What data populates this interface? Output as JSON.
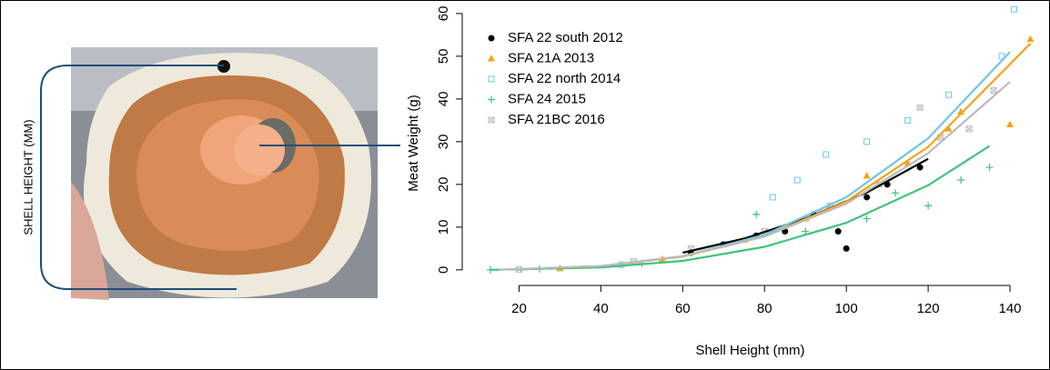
{
  "photo": {
    "label": "SHELL HEIGHT (MM)"
  },
  "chart_data": {
    "type": "scatter",
    "x_label": "Shell Height (mm)",
    "y_label": "Meat Weight (g)",
    "xlim": [
      7,
      146
    ],
    "ylim": [
      -2.8,
      62.1
    ],
    "xticks": [
      20,
      40,
      60,
      80,
      100,
      120,
      140
    ],
    "yticks": [
      0,
      10,
      20,
      30,
      40,
      50,
      60
    ],
    "legend": "top-left",
    "series": [
      {
        "name": "SFA 22 south 2012",
        "color": "#000000",
        "marker": "circle",
        "x": [
          62,
          70,
          78,
          85,
          92,
          98,
          100,
          105,
          110,
          118
        ],
        "values": [
          4,
          6,
          8,
          9,
          13,
          9,
          5,
          17,
          20,
          24
        ],
        "fit": {
          "x": [
            60,
            75,
            90,
            105,
            120
          ],
          "values": [
            4,
            7.3,
            12,
            18.1,
            26
          ]
        }
      },
      {
        "name": "SFA 21A 2013",
        "color": "#f5a31a",
        "marker": "triangle",
        "x": [
          30,
          55,
          75,
          90,
          105,
          115,
          125,
          128,
          140,
          145
        ],
        "values": [
          0.3,
          2.5,
          7,
          12,
          22,
          25,
          33,
          37,
          34,
          54
        ],
        "fit": {
          "x": [
            20,
            40,
            60,
            80,
            100,
            120,
            145
          ],
          "values": [
            0.09,
            0.84,
            3.1,
            7.8,
            16,
            28.8,
            53
          ]
        }
      },
      {
        "name": "SFA 22 north 2014",
        "color": "#6ec6e6",
        "marker": "square",
        "x": [
          45,
          70,
          82,
          88,
          95,
          105,
          115,
          125,
          138,
          141
        ],
        "values": [
          1.2,
          6,
          17,
          21,
          27,
          30,
          35,
          41,
          50,
          61
        ],
        "fit": {
          "x": [
            20,
            40,
            60,
            80,
            100,
            120,
            140
          ],
          "values": [
            0.09,
            0.86,
            3.2,
            8.2,
            17,
            30.8,
            51
          ]
        }
      },
      {
        "name": "SFA 24 2015",
        "color": "#3cc47a",
        "marker": "plus",
        "x": [
          13,
          25,
          50,
          78,
          90,
          105,
          112,
          120,
          128,
          135
        ],
        "values": [
          0,
          0.2,
          1.5,
          13,
          9,
          12,
          18,
          15,
          21,
          24
        ],
        "fit": {
          "x": [
            13,
            40,
            60,
            80,
            100,
            120,
            135
          ],
          "values": [
            0,
            0.57,
            2.1,
            5.4,
            11,
            19.8,
            29
          ]
        }
      },
      {
        "name": "SFA 21BC 2016",
        "color": "#bbbbbb",
        "marker": "boxx",
        "x": [
          20,
          48,
          62,
          80,
          96,
          108,
          118,
          123,
          130,
          136
        ],
        "values": [
          0.1,
          2,
          5,
          9,
          15,
          20,
          38,
          31,
          33,
          42
        ],
        "fit": {
          "x": [
            15,
            40,
            60,
            80,
            100,
            120,
            140
          ],
          "values": [
            0.04,
            0.9,
            3.2,
            7.8,
            15.5,
            27.3,
            44
          ]
        }
      }
    ]
  }
}
